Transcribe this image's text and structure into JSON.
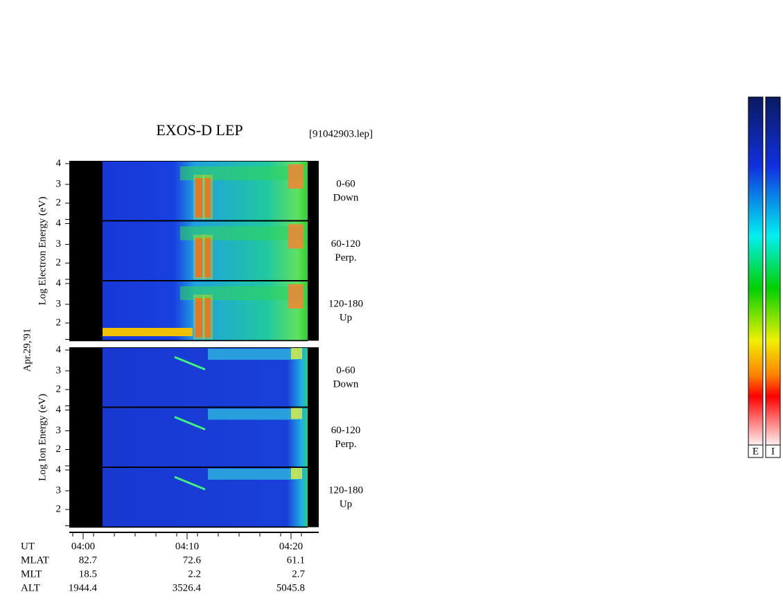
{
  "title": "EXOS-D LEP",
  "file": "[91042903.lep]",
  "date": "Apr.29,'91",
  "groups": [
    {
      "axis_label": "Log  Electron  Energy (eV)",
      "panels": [
        {
          "label": "0-60",
          "sublabel": "Down",
          "ticks": [
            "2",
            "3",
            "4"
          ]
        },
        {
          "label": "60-120",
          "sublabel": "Perp.",
          "ticks": [
            "2",
            "3",
            "4"
          ]
        },
        {
          "label": "120-180",
          "sublabel": "Up",
          "ticks": [
            "2",
            "3",
            "4"
          ]
        }
      ]
    },
    {
      "axis_label": "Log  Ion  Energy (eV)",
      "panels": [
        {
          "label": "0-60",
          "sublabel": "Down",
          "ticks": [
            "2",
            "3",
            "4"
          ]
        },
        {
          "label": "60-120",
          "sublabel": "Perp.",
          "ticks": [
            "2",
            "3",
            "4"
          ]
        },
        {
          "label": "120-180",
          "sublabel": "Up",
          "ticks": [
            "2",
            "3",
            "4"
          ]
        }
      ]
    }
  ],
  "rows": [
    {
      "name": "UT",
      "values": [
        "04:00",
        "04:10",
        "04:20"
      ]
    },
    {
      "name": "MLAT",
      "values": [
        "82.7",
        "72.6",
        "61.1"
      ]
    },
    {
      "name": "MLT",
      "values": [
        "18.5",
        "2.2",
        "2.7"
      ]
    },
    {
      "name": "ALT",
      "values": [
        "1944.4",
        "3526.4",
        "5045.8"
      ]
    }
  ],
  "colorbars": [
    "E",
    "I"
  ]
}
